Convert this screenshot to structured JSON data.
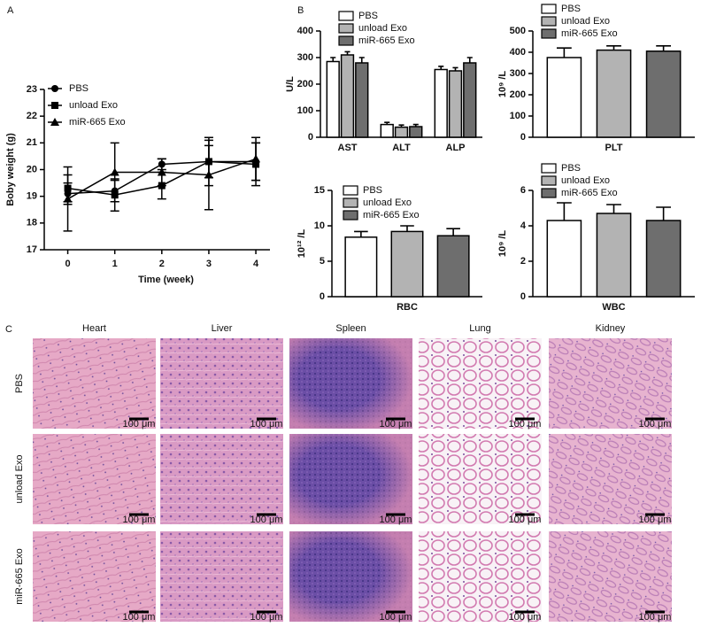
{
  "chart_data": [
    {
      "type": "line",
      "panel": "A",
      "ylabel": "Boby weight (g)",
      "xlabel": "Time (week)",
      "x": [
        0,
        1,
        2,
        3,
        4
      ],
      "xlim": [
        -0.5,
        4.3
      ],
      "xticks": [
        0,
        1,
        2,
        3,
        4
      ],
      "ylim": [
        17,
        23
      ],
      "yticks": [
        17,
        18,
        19,
        20,
        21,
        22,
        23
      ],
      "series": [
        {
          "name": "PBS",
          "color": "#000000",
          "marker": "circle",
          "values": [
            19.1,
            19.2,
            20.2,
            20.3,
            20.3
          ],
          "errors": [
            0.4,
            0.4,
            0.2,
            0.9,
            0.7
          ]
        },
        {
          "name": "unload Exo",
          "color": "#000000",
          "marker": "square",
          "values": [
            19.3,
            19.05,
            19.4,
            20.3,
            20.2
          ],
          "errors": [
            0.5,
            0.6,
            0.5,
            0.6,
            0.8
          ]
        },
        {
          "name": "miR-665 Exo",
          "color": "#000000",
          "marker": "triangle",
          "values": [
            18.9,
            19.9,
            19.9,
            19.8,
            20.4
          ],
          "errors": [
            1.2,
            1.1,
            0.5,
            1.3,
            0.8
          ]
        }
      ]
    },
    {
      "type": "bar",
      "panel": "B",
      "ylabel": "U/L",
      "categories": [
        "AST",
        "ALT",
        "ALP"
      ],
      "ylim": [
        0,
        400
      ],
      "yticks": [
        0,
        100,
        200,
        300,
        400
      ],
      "series": [
        {
          "name": "PBS",
          "color": "#ffffff",
          "values": [
            285,
            48,
            255
          ],
          "errors": [
            15,
            8,
            12
          ]
        },
        {
          "name": "unload Exo",
          "color": "#b3b3b3",
          "values": [
            310,
            38,
            250
          ],
          "errors": [
            12,
            8,
            12
          ]
        },
        {
          "name": "miR-665 Exo",
          "color": "#6e6e6e",
          "values": [
            280,
            40,
            280
          ],
          "errors": [
            20,
            8,
            20
          ]
        }
      ]
    },
    {
      "type": "bar",
      "ylabel": "10⁹ /L",
      "categories": [
        "PLT"
      ],
      "ylim": [
        0,
        500
      ],
      "yticks": [
        0,
        100,
        200,
        300,
        400,
        500
      ],
      "series": [
        {
          "name": "PBS",
          "color": "#ffffff",
          "values": [
            375
          ],
          "errors": [
            45
          ]
        },
        {
          "name": "unload Exo",
          "color": "#b3b3b3",
          "values": [
            410
          ],
          "errors": [
            20
          ]
        },
        {
          "name": "miR-665 Exo",
          "color": "#6e6e6e",
          "values": [
            405
          ],
          "errors": [
            25
          ]
        }
      ]
    },
    {
      "type": "bar",
      "ylabel": "10¹² /L",
      "categories": [
        "RBC"
      ],
      "ylim": [
        0,
        15
      ],
      "yticks": [
        0,
        5,
        10,
        15
      ],
      "series": [
        {
          "name": "PBS",
          "color": "#ffffff",
          "values": [
            8.4
          ],
          "errors": [
            0.8
          ]
        },
        {
          "name": "unload Exo",
          "color": "#b3b3b3",
          "values": [
            9.2
          ],
          "errors": [
            0.8
          ]
        },
        {
          "name": "miR-665 Exo",
          "color": "#6e6e6e",
          "values": [
            8.6
          ],
          "errors": [
            1.0
          ]
        }
      ]
    },
    {
      "type": "bar",
      "ylabel": "10⁹ /L",
      "categories": [
        "WBC"
      ],
      "ylim": [
        0,
        6
      ],
      "yticks": [
        0,
        2,
        4,
        6
      ],
      "series": [
        {
          "name": "PBS",
          "color": "#ffffff",
          "values": [
            4.3
          ],
          "errors": [
            1.0
          ]
        },
        {
          "name": "unload Exo",
          "color": "#b3b3b3",
          "values": [
            4.7
          ],
          "errors": [
            0.5
          ]
        },
        {
          "name": "miR-665 Exo",
          "color": "#6e6e6e",
          "values": [
            4.3
          ],
          "errors": [
            0.75
          ]
        }
      ]
    }
  ],
  "histology": {
    "panel": "C",
    "columns": [
      "Heart",
      "Liver",
      "Spleen",
      "Lung",
      "Kidney"
    ],
    "rows": [
      "PBS",
      "unload Exo",
      "miR-665 Exo"
    ],
    "scale_bar": "100 μm"
  }
}
